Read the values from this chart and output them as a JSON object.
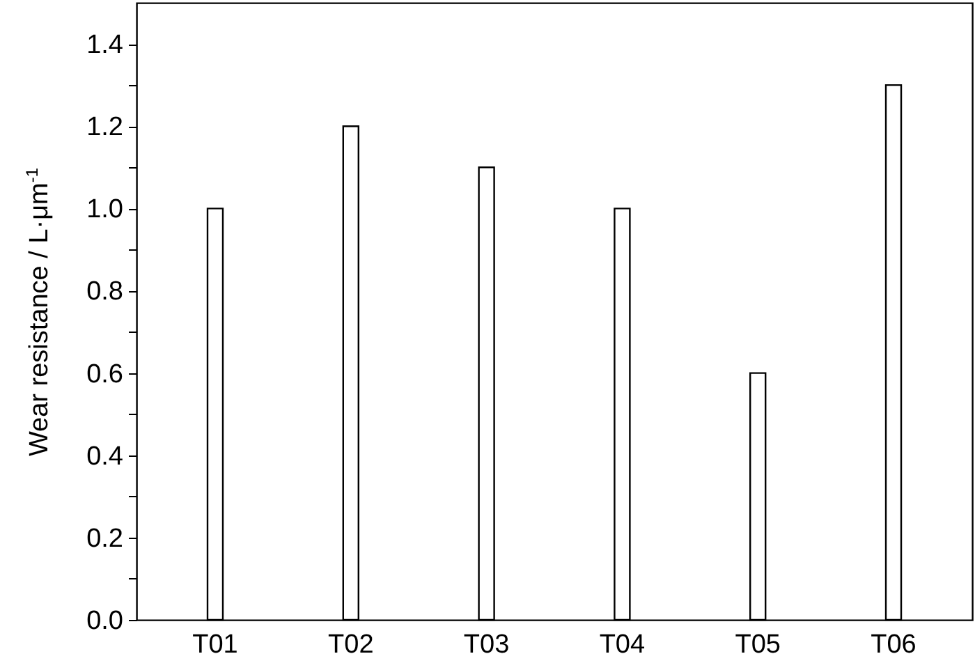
{
  "chart_data": {
    "type": "bar",
    "ylabel": "Wear resistance / L·μm$^{-1}$",
    "categories": [
      "T01",
      "T02",
      "T03",
      "T04",
      "T05",
      "T06"
    ],
    "values": [
      1.0,
      1.2,
      1.1,
      1.0,
      0.6,
      1.3
    ],
    "colors": [
      "#ffffff",
      "#ffffff",
      "#ffffff",
      "#ffffff",
      "#ffffff",
      "#ffffff"
    ],
    "ylim": [
      0,
      1.5
    ],
    "yticks": [
      {
        "value": 0,
        "label": "0.0"
      },
      {
        "value": 0.1,
        "label": null
      },
      {
        "value": 0.2,
        "label": "0.2"
      },
      {
        "value": 0.3,
        "label": null
      },
      {
        "value": 0.4,
        "label": "0.4"
      },
      {
        "value": 0.5,
        "label": null
      },
      {
        "value": 0.6,
        "label": "0.6"
      },
      {
        "value": 0.7,
        "label": null
      },
      {
        "value": 0.8,
        "label": "0.8"
      },
      {
        "value": 0.9,
        "label": null
      },
      {
        "value": 1.0,
        "label": "1.0"
      },
      {
        "value": 1.1,
        "label": null
      },
      {
        "value": 1.2,
        "label": "1.2"
      },
      {
        "value": 1.3,
        "label": null
      },
      {
        "value": 1.4,
        "label": "1.4"
      }
    ],
    "relative": false
  }
}
